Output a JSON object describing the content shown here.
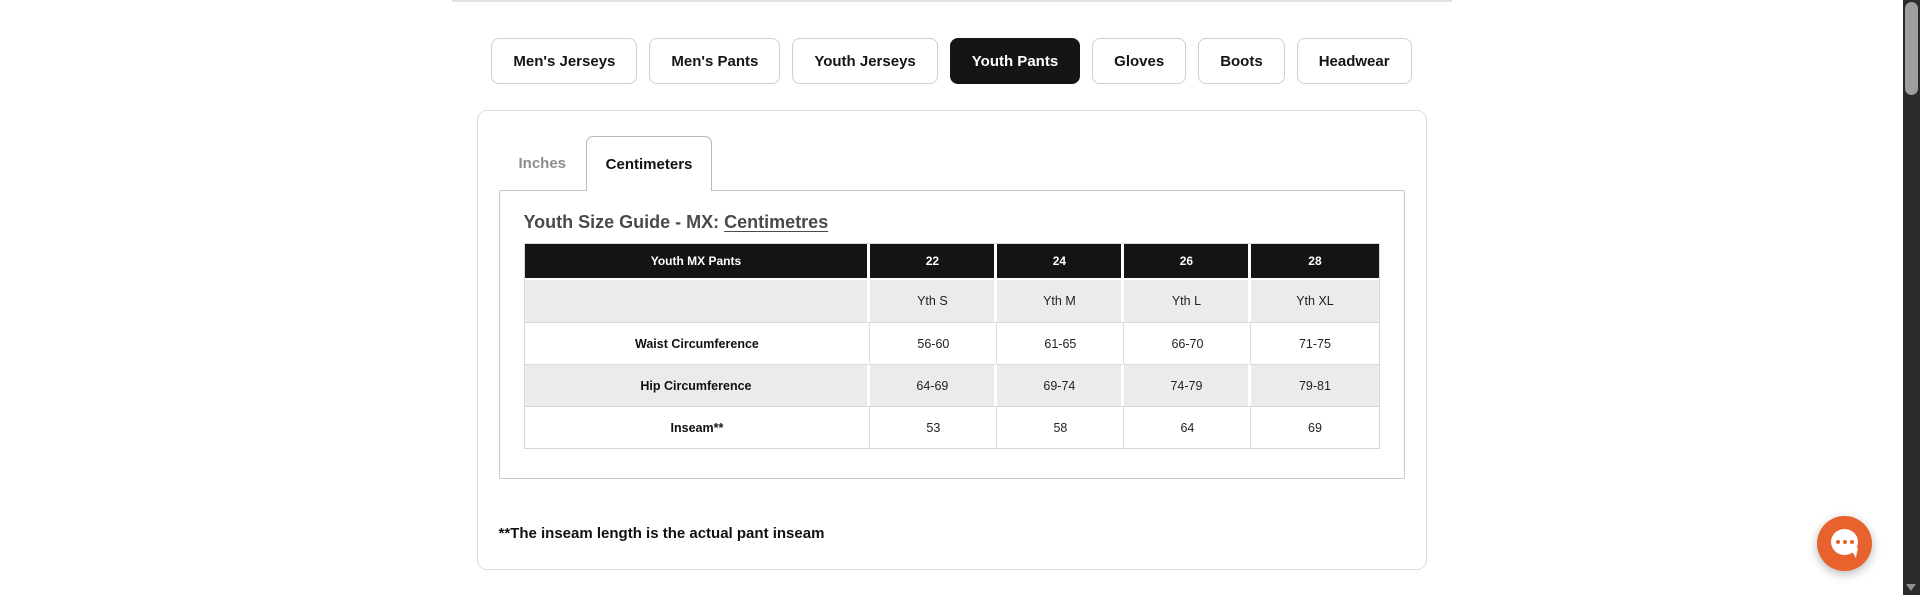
{
  "category_nav": {
    "buttons": [
      {
        "label": "Men's Jerseys",
        "active": false
      },
      {
        "label": "Men's Pants",
        "active": false
      },
      {
        "label": "Youth Jerseys",
        "active": false
      },
      {
        "label": "Youth Pants",
        "active": true
      },
      {
        "label": "Gloves",
        "active": false
      },
      {
        "label": "Boots",
        "active": false
      },
      {
        "label": "Headwear",
        "active": false
      }
    ]
  },
  "unit_tabs": {
    "inactive_label": "Inches",
    "active_label": "Centimeters"
  },
  "size_guide": {
    "title_prefix": "Youth Size Guide - MX: ",
    "title_unit": "Centimetres",
    "table": {
      "header": [
        "Youth MX Pants",
        "22",
        "24",
        "26",
        "28"
      ],
      "rows": [
        {
          "label": "",
          "values": [
            "Yth S",
            "Yth M",
            "Yth L",
            "Yth XL"
          ]
        },
        {
          "label": "Waist Circumference",
          "values": [
            "56-60",
            "61-65",
            "66-70",
            "71-75"
          ]
        },
        {
          "label": "Hip Circumference",
          "values": [
            "64-69",
            "69-74",
            "74-79",
            "79-81"
          ]
        },
        {
          "label": "Inseam**",
          "values": [
            "53",
            "58",
            "64",
            "69"
          ]
        }
      ]
    },
    "footnote": "**The inseam length is the actual pant inseam"
  },
  "chat_widget": {
    "icon": "chat-bubble-icon",
    "color": "#e8622d"
  },
  "colors": {
    "active_button_bg": "#151515",
    "table_header_bg": "#141414",
    "table_alt_row_bg": "#ebebeb",
    "accent_orange": "#e8622d",
    "scrollbar_track": "#2b2b2b",
    "scrollbar_thumb": "#9e9e9e"
  }
}
